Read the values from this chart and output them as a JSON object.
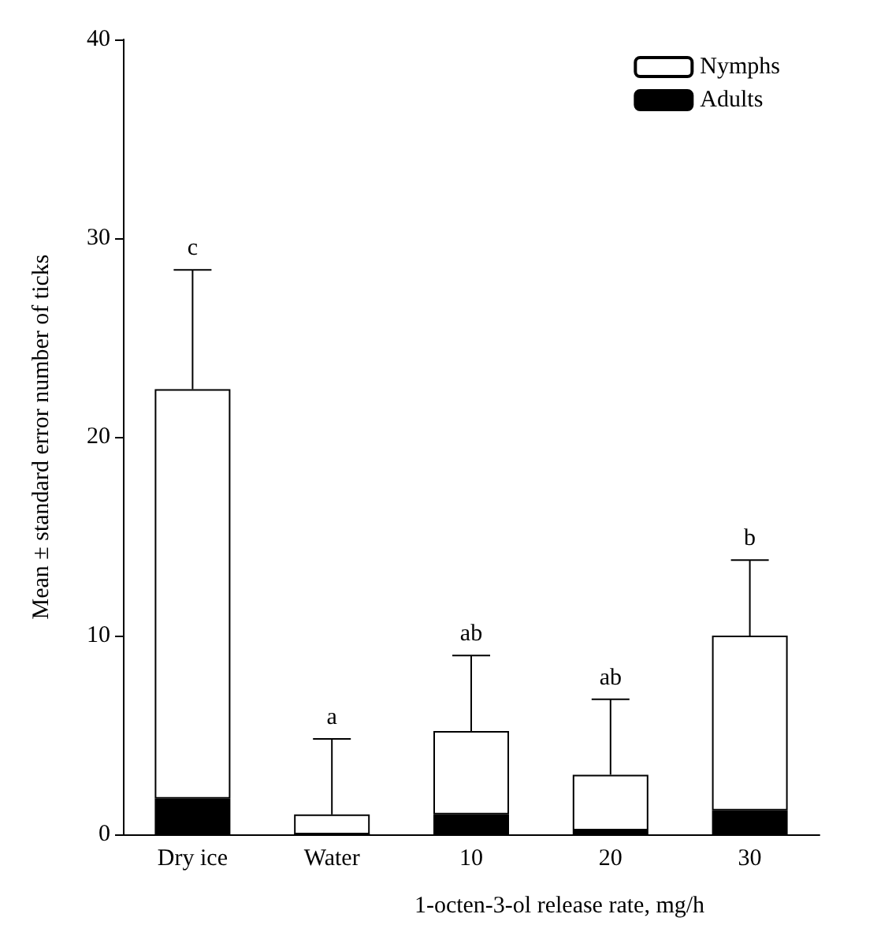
{
  "chart_data": {
    "type": "bar",
    "stacked": true,
    "ylabel": "Mean ± standard error number of ticks",
    "xlabel": "1-octen-3-ol release rate, mg/h",
    "categories": [
      "Dry ice",
      "Water",
      "10",
      "20",
      "30"
    ],
    "series": [
      {
        "name": "Adults",
        "color": "#000000",
        "values": [
          1.8,
          0,
          1.0,
          0.2,
          1.2
        ]
      },
      {
        "name": "Nymphs",
        "color": "#ffffff",
        "values": [
          20.6,
          1.0,
          4.2,
          2.8,
          8.8
        ],
        "errors": [
          [
            22.4,
            28.4
          ],
          [
            1.0,
            4.8
          ],
          [
            5.2,
            9.0
          ],
          [
            3.0,
            6.8
          ],
          [
            10.0,
            13.8
          ]
        ]
      }
    ],
    "annotations": [
      {
        "text": "c",
        "x": "Dry ice",
        "y": 28.4
      },
      {
        "text": "a",
        "x": "Water",
        "y": 4.8
      },
      {
        "text": "ab",
        "x": "10",
        "y": 9.0
      },
      {
        "text": "ab",
        "x": "20",
        "y": 6.8
      },
      {
        "text": "b",
        "x": "30",
        "y": 13.8
      }
    ],
    "ylim": [
      0,
      40
    ],
    "yticks": [
      0,
      10,
      20,
      30,
      40
    ],
    "grid": false,
    "legend": "top right"
  }
}
